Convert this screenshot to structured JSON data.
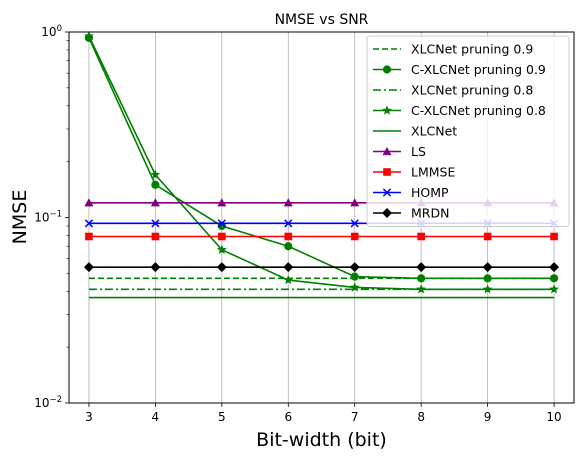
{
  "chart_data": {
    "type": "line",
    "title": "NMSE vs SNR",
    "xlabel": "Bit-width (bit)",
    "ylabel": "NMSE",
    "yscale": "log",
    "xlim": [
      2.7,
      10.3
    ],
    "ylim": [
      0.01,
      1
    ],
    "x": [
      3,
      4,
      5,
      6,
      7,
      8,
      9,
      10
    ],
    "xticks": [
      "3",
      "4",
      "5",
      "6",
      "7",
      "8",
      "9",
      "10"
    ],
    "yticks": [
      {
        "value": 0.01,
        "base": "10",
        "exp": "−2"
      },
      {
        "value": 0.1,
        "base": "10",
        "exp": "−1"
      },
      {
        "value": 1,
        "base": "10",
        "exp": "0"
      }
    ],
    "grid": "vertical",
    "legend_position": "top-right",
    "series": [
      {
        "name": "XLCNet pruning 0.9",
        "color": "#008000",
        "dash": "dashed",
        "marker": "none",
        "values": [
          0.047,
          0.047,
          0.047,
          0.047,
          0.047,
          0.047,
          0.047,
          0.047
        ]
      },
      {
        "name": "C-XLCNet pruning 0.9",
        "color": "#008000",
        "dash": "solid",
        "marker": "circle",
        "values": [
          0.93,
          0.15,
          0.09,
          0.07,
          0.048,
          0.047,
          0.047,
          0.047
        ]
      },
      {
        "name": "XLCNet pruning 0.8",
        "color": "#008000",
        "dash": "dashdot",
        "marker": "none",
        "values": [
          0.041,
          0.041,
          0.041,
          0.041,
          0.041,
          0.041,
          0.041,
          0.041
        ]
      },
      {
        "name": "C-XLCNet pruning 0.8",
        "color": "#008000",
        "dash": "solid",
        "marker": "star",
        "values": [
          0.95,
          0.17,
          0.067,
          0.046,
          0.042,
          0.041,
          0.041,
          0.041
        ]
      },
      {
        "name": "XLCNet",
        "color": "#008000",
        "dash": "solid",
        "marker": "none",
        "values": [
          0.037,
          0.037,
          0.037,
          0.037,
          0.037,
          0.037,
          0.037,
          0.037
        ]
      },
      {
        "name": "LS",
        "color": "#800080",
        "dash": "solid",
        "marker": "triangle",
        "values": [
          0.12,
          0.12,
          0.12,
          0.12,
          0.12,
          0.12,
          0.12,
          0.12
        ]
      },
      {
        "name": "LMMSE",
        "color": "#ff0000",
        "dash": "solid",
        "marker": "square",
        "values": [
          0.079,
          0.079,
          0.079,
          0.079,
          0.079,
          0.079,
          0.079,
          0.079
        ]
      },
      {
        "name": "HOMP",
        "color": "#0000ff",
        "dash": "solid",
        "marker": "x",
        "values": [
          0.093,
          0.093,
          0.093,
          0.093,
          0.093,
          0.093,
          0.093,
          0.093
        ]
      },
      {
        "name": "MRDN",
        "color": "#000000",
        "dash": "solid",
        "marker": "diamond",
        "values": [
          0.054,
          0.054,
          0.054,
          0.054,
          0.054,
          0.054,
          0.054,
          0.054
        ]
      }
    ]
  }
}
